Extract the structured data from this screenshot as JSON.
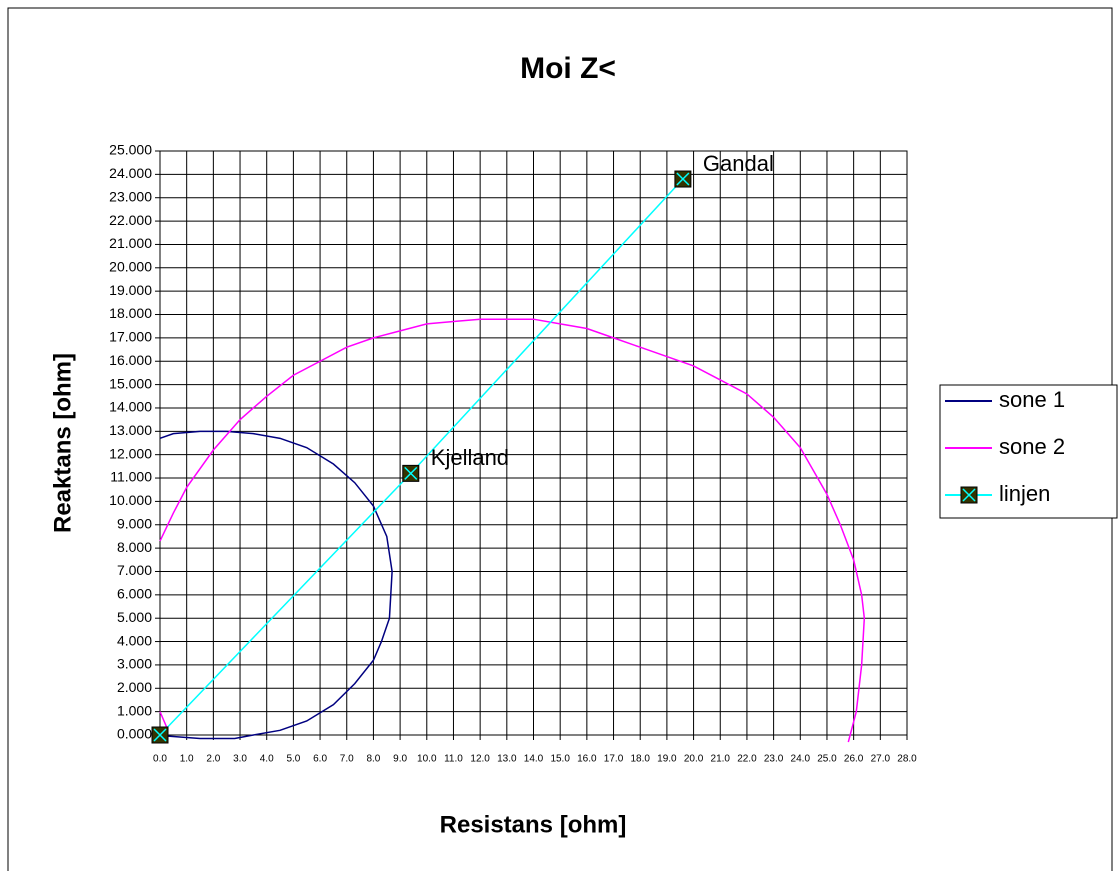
{
  "chart_data": {
    "type": "scatter",
    "title": "Moi Z<",
    "x_label": "Resistans [ohm]",
    "y_label": "Reaktans [ohm]",
    "xlim": [
      0,
      28
    ],
    "ylim": [
      0,
      25
    ],
    "grid": true,
    "legend": "right",
    "xticks": [
      {
        "value": 0,
        "label": "0.0"
      },
      {
        "value": 1,
        "label": "1.0"
      },
      {
        "value": 2,
        "label": "2.0"
      },
      {
        "value": 3,
        "label": "3.0"
      },
      {
        "value": 4,
        "label": "4.0"
      },
      {
        "value": 5,
        "label": "5.0"
      },
      {
        "value": 6,
        "label": "6.0"
      },
      {
        "value": 7,
        "label": "7.0"
      },
      {
        "value": 8,
        "label": "8.0"
      },
      {
        "value": 9,
        "label": "9.0"
      },
      {
        "value": 10,
        "label": "10.0"
      },
      {
        "value": 11,
        "label": "11.0"
      },
      {
        "value": 12,
        "label": "12.0"
      },
      {
        "value": 13,
        "label": "13.0"
      },
      {
        "value": 14,
        "label": "14.0"
      },
      {
        "value": 15,
        "label": "15.0"
      },
      {
        "value": 16,
        "label": "16.0"
      },
      {
        "value": 17,
        "label": "17.0"
      },
      {
        "value": 18,
        "label": "18.0"
      },
      {
        "value": 19,
        "label": "19.0"
      },
      {
        "value": 20,
        "label": "20.0"
      },
      {
        "value": 21,
        "label": "21.0"
      },
      {
        "value": 22,
        "label": "22.0"
      },
      {
        "value": 23,
        "label": "23.0"
      },
      {
        "value": 24,
        "label": "24.0"
      },
      {
        "value": 25,
        "label": "25.0"
      },
      {
        "value": 26,
        "label": "26.0"
      },
      {
        "value": 27,
        "label": "27.0"
      },
      {
        "value": 28,
        "label": "28.0"
      }
    ],
    "yticks": [
      {
        "value": 0,
        "label": "0.000"
      },
      {
        "value": 1,
        "label": "1.000"
      },
      {
        "value": 2,
        "label": "2.000"
      },
      {
        "value": 3,
        "label": "3.000"
      },
      {
        "value": 4,
        "label": "4.000"
      },
      {
        "value": 5,
        "label": "5.000"
      },
      {
        "value": 6,
        "label": "6.000"
      },
      {
        "value": 7,
        "label": "7.000"
      },
      {
        "value": 8,
        "label": "8.000"
      },
      {
        "value": 9,
        "label": "9.000"
      },
      {
        "value": 10,
        "label": "10.000"
      },
      {
        "value": 11,
        "label": "11.000"
      },
      {
        "value": 12,
        "label": "12.000"
      },
      {
        "value": 13,
        "label": "13.000"
      },
      {
        "value": 14,
        "label": "14.000"
      },
      {
        "value": 15,
        "label": "15.000"
      },
      {
        "value": 16,
        "label": "16.000"
      },
      {
        "value": 17,
        "label": "17.000"
      },
      {
        "value": 18,
        "label": "18.000"
      },
      {
        "value": 19,
        "label": "19.000"
      },
      {
        "value": 20,
        "label": "20.000"
      },
      {
        "value": 21,
        "label": "21.000"
      },
      {
        "value": 22,
        "label": "22.000"
      },
      {
        "value": 23,
        "label": "23.000"
      },
      {
        "value": 24,
        "label": "24.000"
      },
      {
        "value": 25,
        "label": "25.000"
      }
    ],
    "series": [
      {
        "name": "sone 1",
        "color": "#000080",
        "x": [
          0,
          0.5,
          1.5,
          2.5,
          3.5,
          4.5,
          5.5,
          6.5,
          7.3,
          8,
          8.5,
          8.7,
          8.6,
          8.3,
          8,
          7.3,
          6.5,
          5.5,
          4.5,
          3.5,
          2.8,
          1.5,
          0.3
        ],
        "values": [
          12.7,
          12.9,
          13,
          13,
          12.9,
          12.7,
          12.3,
          11.6,
          10.8,
          9.8,
          8.5,
          7,
          5,
          4,
          3.2,
          2.2,
          1.3,
          0.6,
          0.2,
          0,
          -0.15,
          -0.15,
          -0.05
        ]
      },
      {
        "name": "sone 2",
        "color": "#ff00ff",
        "x": [
          0,
          0.5,
          1,
          2,
          3,
          4,
          5,
          6,
          7,
          8,
          9,
          10,
          11,
          12,
          13,
          14,
          15,
          16,
          17,
          18,
          19,
          20,
          21,
          22,
          23,
          24,
          25,
          25.5,
          26,
          26.3,
          26.4,
          26.3,
          26.1,
          25.8,
          null,
          0,
          0.3
        ],
        "values": [
          8.3,
          9.5,
          10.6,
          12.2,
          13.5,
          14.5,
          15.4,
          16,
          16.6,
          17,
          17.3,
          17.6,
          17.7,
          17.8,
          17.8,
          17.8,
          17.6,
          17.4,
          17,
          16.6,
          16.2,
          15.8,
          15.2,
          14.6,
          13.6,
          12.3,
          10.3,
          9,
          7.5,
          6,
          5,
          3,
          1,
          -0.3,
          null,
          1,
          0.2
        ]
      },
      {
        "name": "linjen",
        "color": "#00ffff",
        "marker": "square-x",
        "marker_fill": "#333300",
        "x": [
          0,
          9.4,
          19.6
        ],
        "values": [
          0,
          11.2,
          23.8
        ],
        "point_labels": [
          null,
          "Kjelland",
          "Gandal"
        ]
      }
    ]
  }
}
